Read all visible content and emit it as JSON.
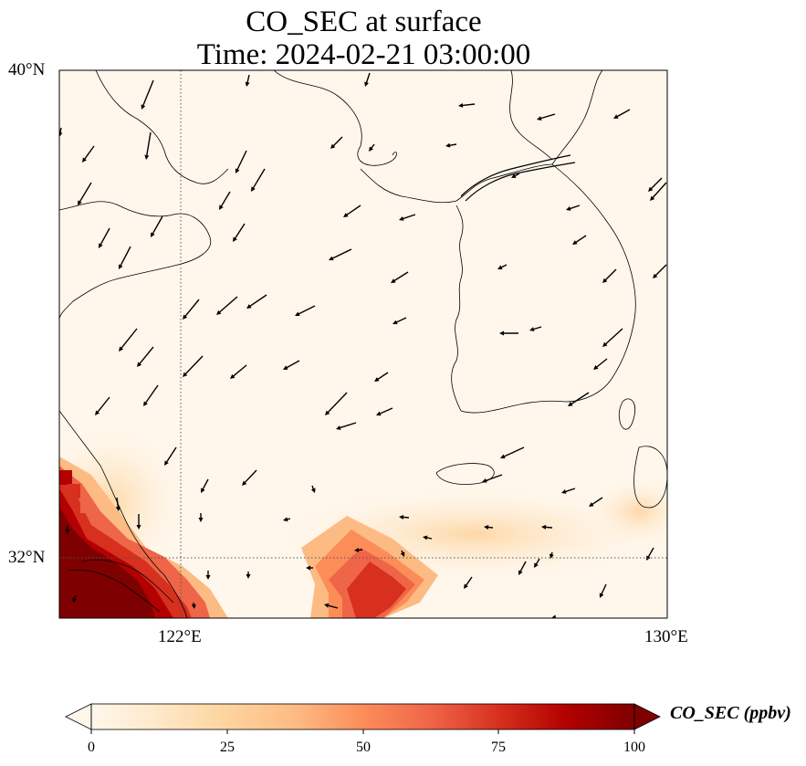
{
  "title": {
    "line1": "CO_SEC at surface",
    "line2": "Time: 2024-02-21 03:00:00"
  },
  "axes": {
    "lat_ticks": [
      "40°N",
      "32°N"
    ],
    "lon_ticks": [
      "122°E",
      "130°E"
    ],
    "gridlines": "dotted at 122°E and 32°N"
  },
  "colorbar": {
    "label": "CO_SEC (ppbv)",
    "ticks": [
      "0",
      "25",
      "50",
      "75",
      "100"
    ],
    "colormap": [
      "#fff7ec",
      "#fee8c8",
      "#fdd49e",
      "#fdbb84",
      "#fc8d59",
      "#ef6548",
      "#d7301f",
      "#b30000",
      "#7f0000"
    ],
    "extend": "both"
  },
  "map": {
    "land_color": "#fff7ec",
    "coast_color": "#000000",
    "arrow_color": "#000000",
    "high_color": "#7f0000"
  }
}
